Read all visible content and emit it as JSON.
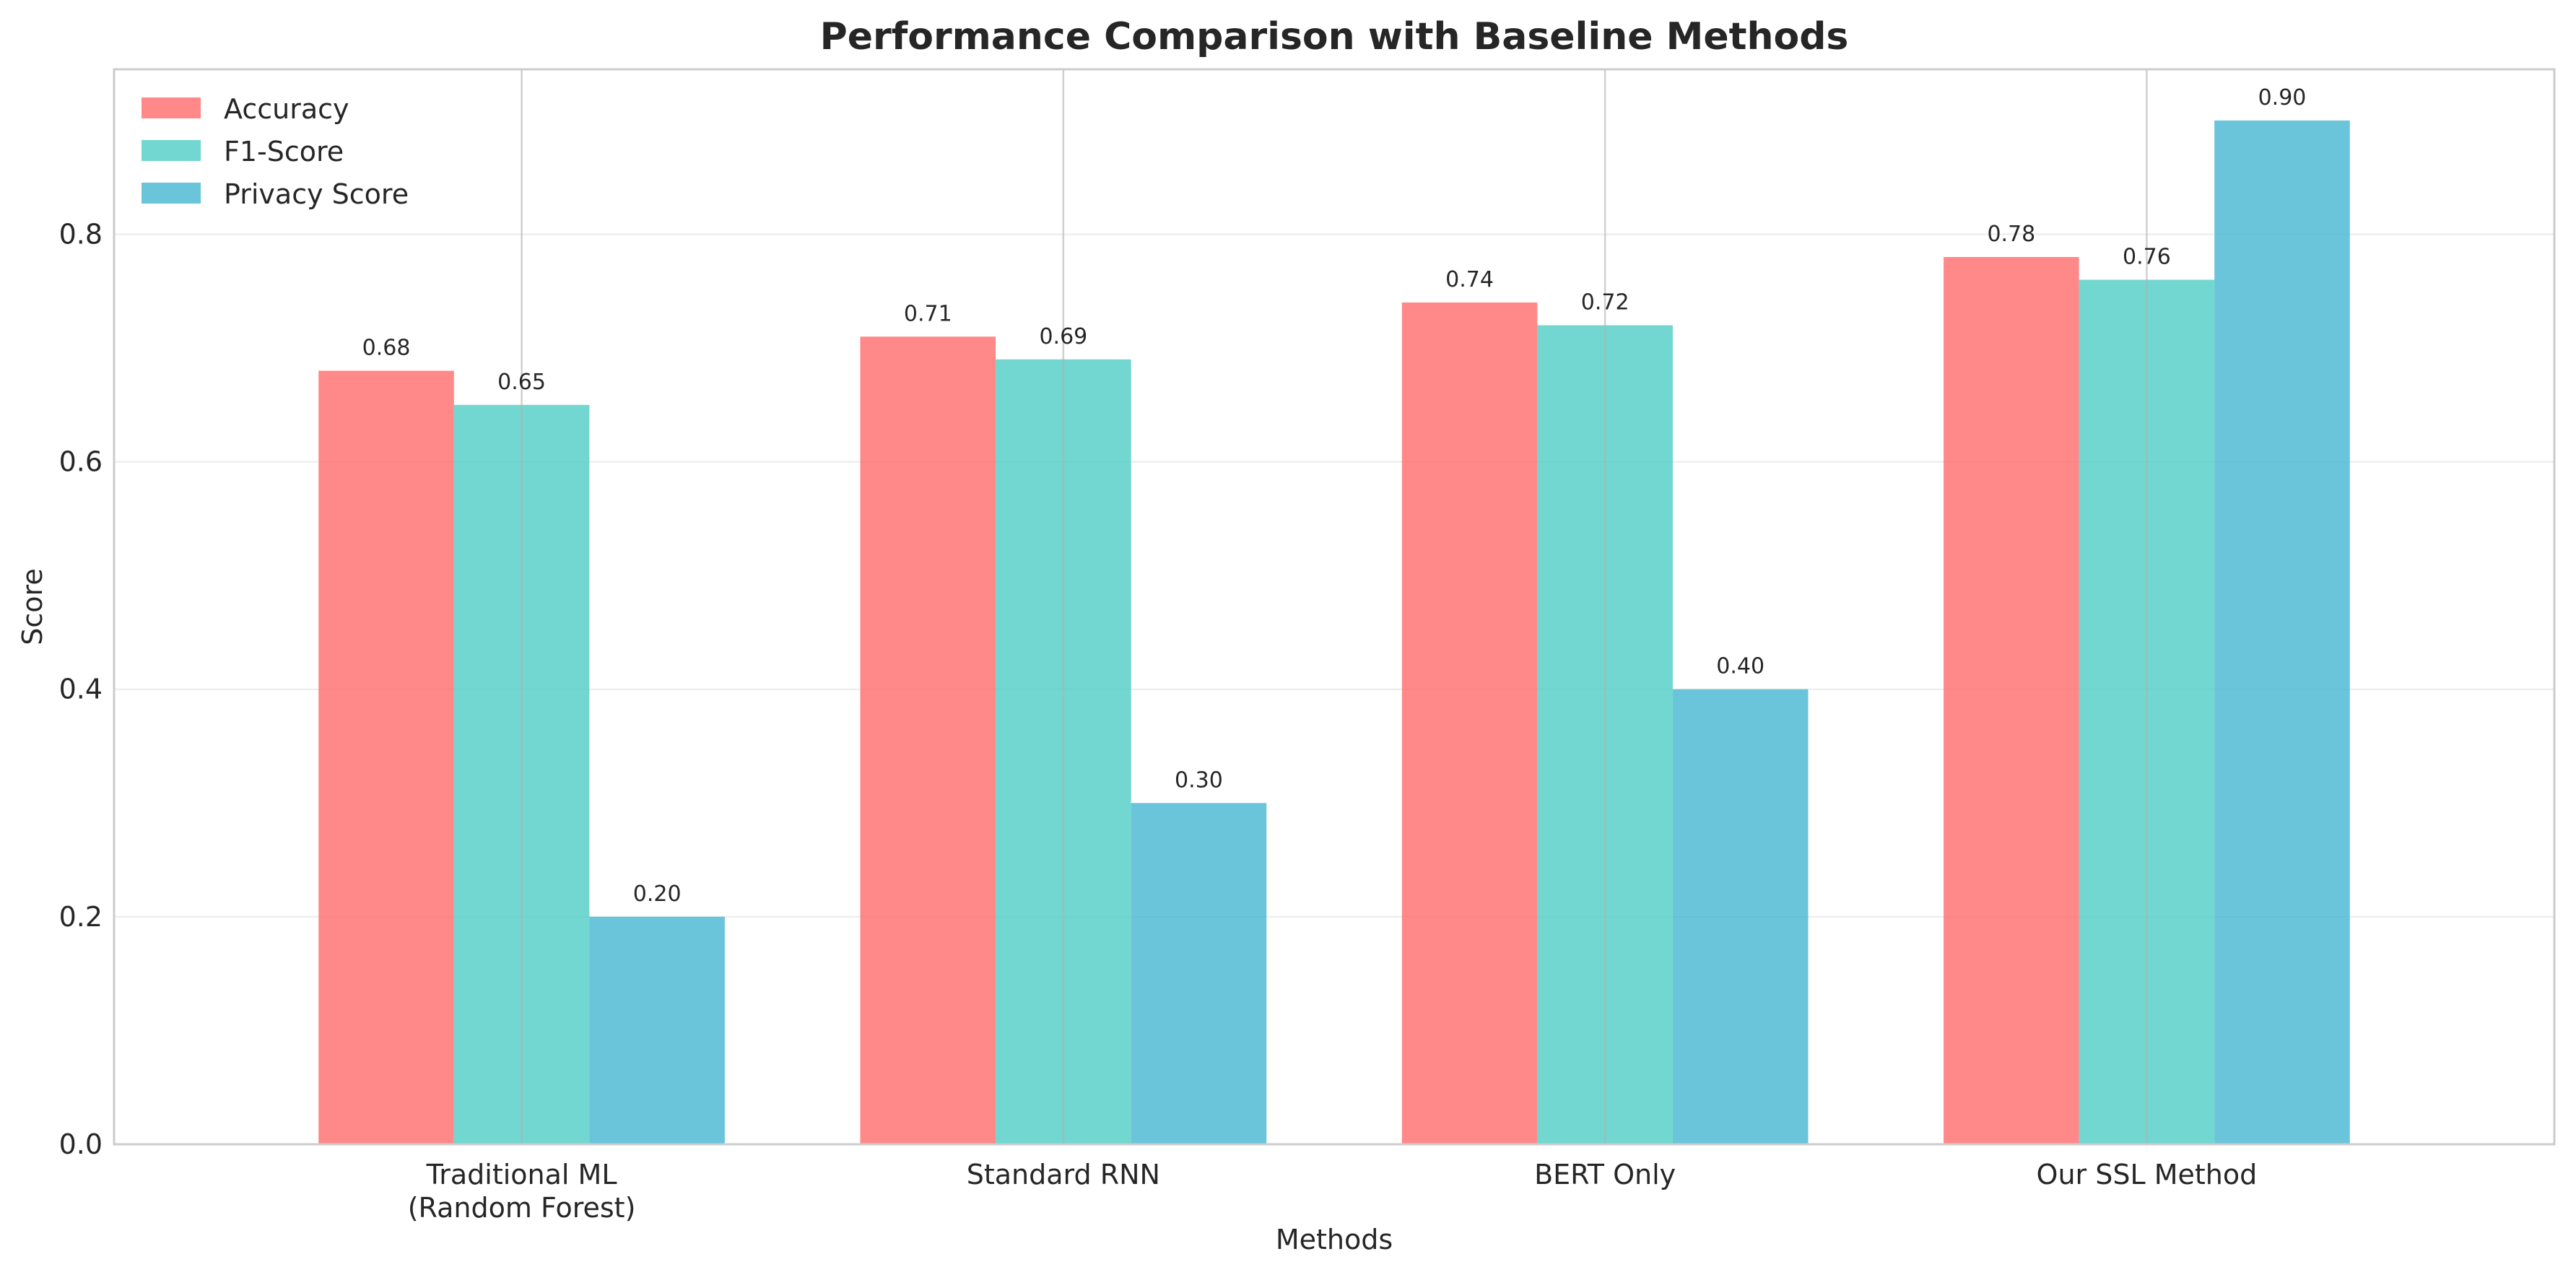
{
  "chart_data": {
    "type": "bar",
    "title": "Performance Comparison with Baseline Methods",
    "xlabel": "Methods",
    "ylabel": "Score",
    "categories": [
      [
        "Traditional ML",
        "(Random Forest)"
      ],
      [
        "Standard RNN"
      ],
      [
        "BERT Only"
      ],
      [
        "Our SSL Method"
      ]
    ],
    "series": [
      {
        "name": "Accuracy",
        "color": "#FF6B6B",
        "values": [
          0.68,
          0.71,
          0.74,
          0.78
        ],
        "labels": [
          "0.68",
          "0.71",
          "0.74",
          "0.78"
        ]
      },
      {
        "name": "F1-Score",
        "color": "#4ECDC4",
        "values": [
          0.65,
          0.69,
          0.72,
          0.76
        ],
        "labels": [
          "0.65",
          "0.69",
          "0.72",
          "0.76"
        ]
      },
      {
        "name": "Privacy Score",
        "color": "#45B7D1",
        "values": [
          0.2,
          0.3,
          0.4,
          0.9
        ],
        "labels": [
          "0.20",
          "0.30",
          "0.40",
          "0.90"
        ]
      }
    ],
    "yticks": [
      0.0,
      0.2,
      0.4,
      0.6,
      0.8
    ],
    "ytick_labels": [
      "0.0",
      "0.2",
      "0.4",
      "0.6",
      "0.8"
    ],
    "ylim": [
      0.0,
      0.945
    ],
    "grid": true,
    "legend_position": "top-left"
  }
}
